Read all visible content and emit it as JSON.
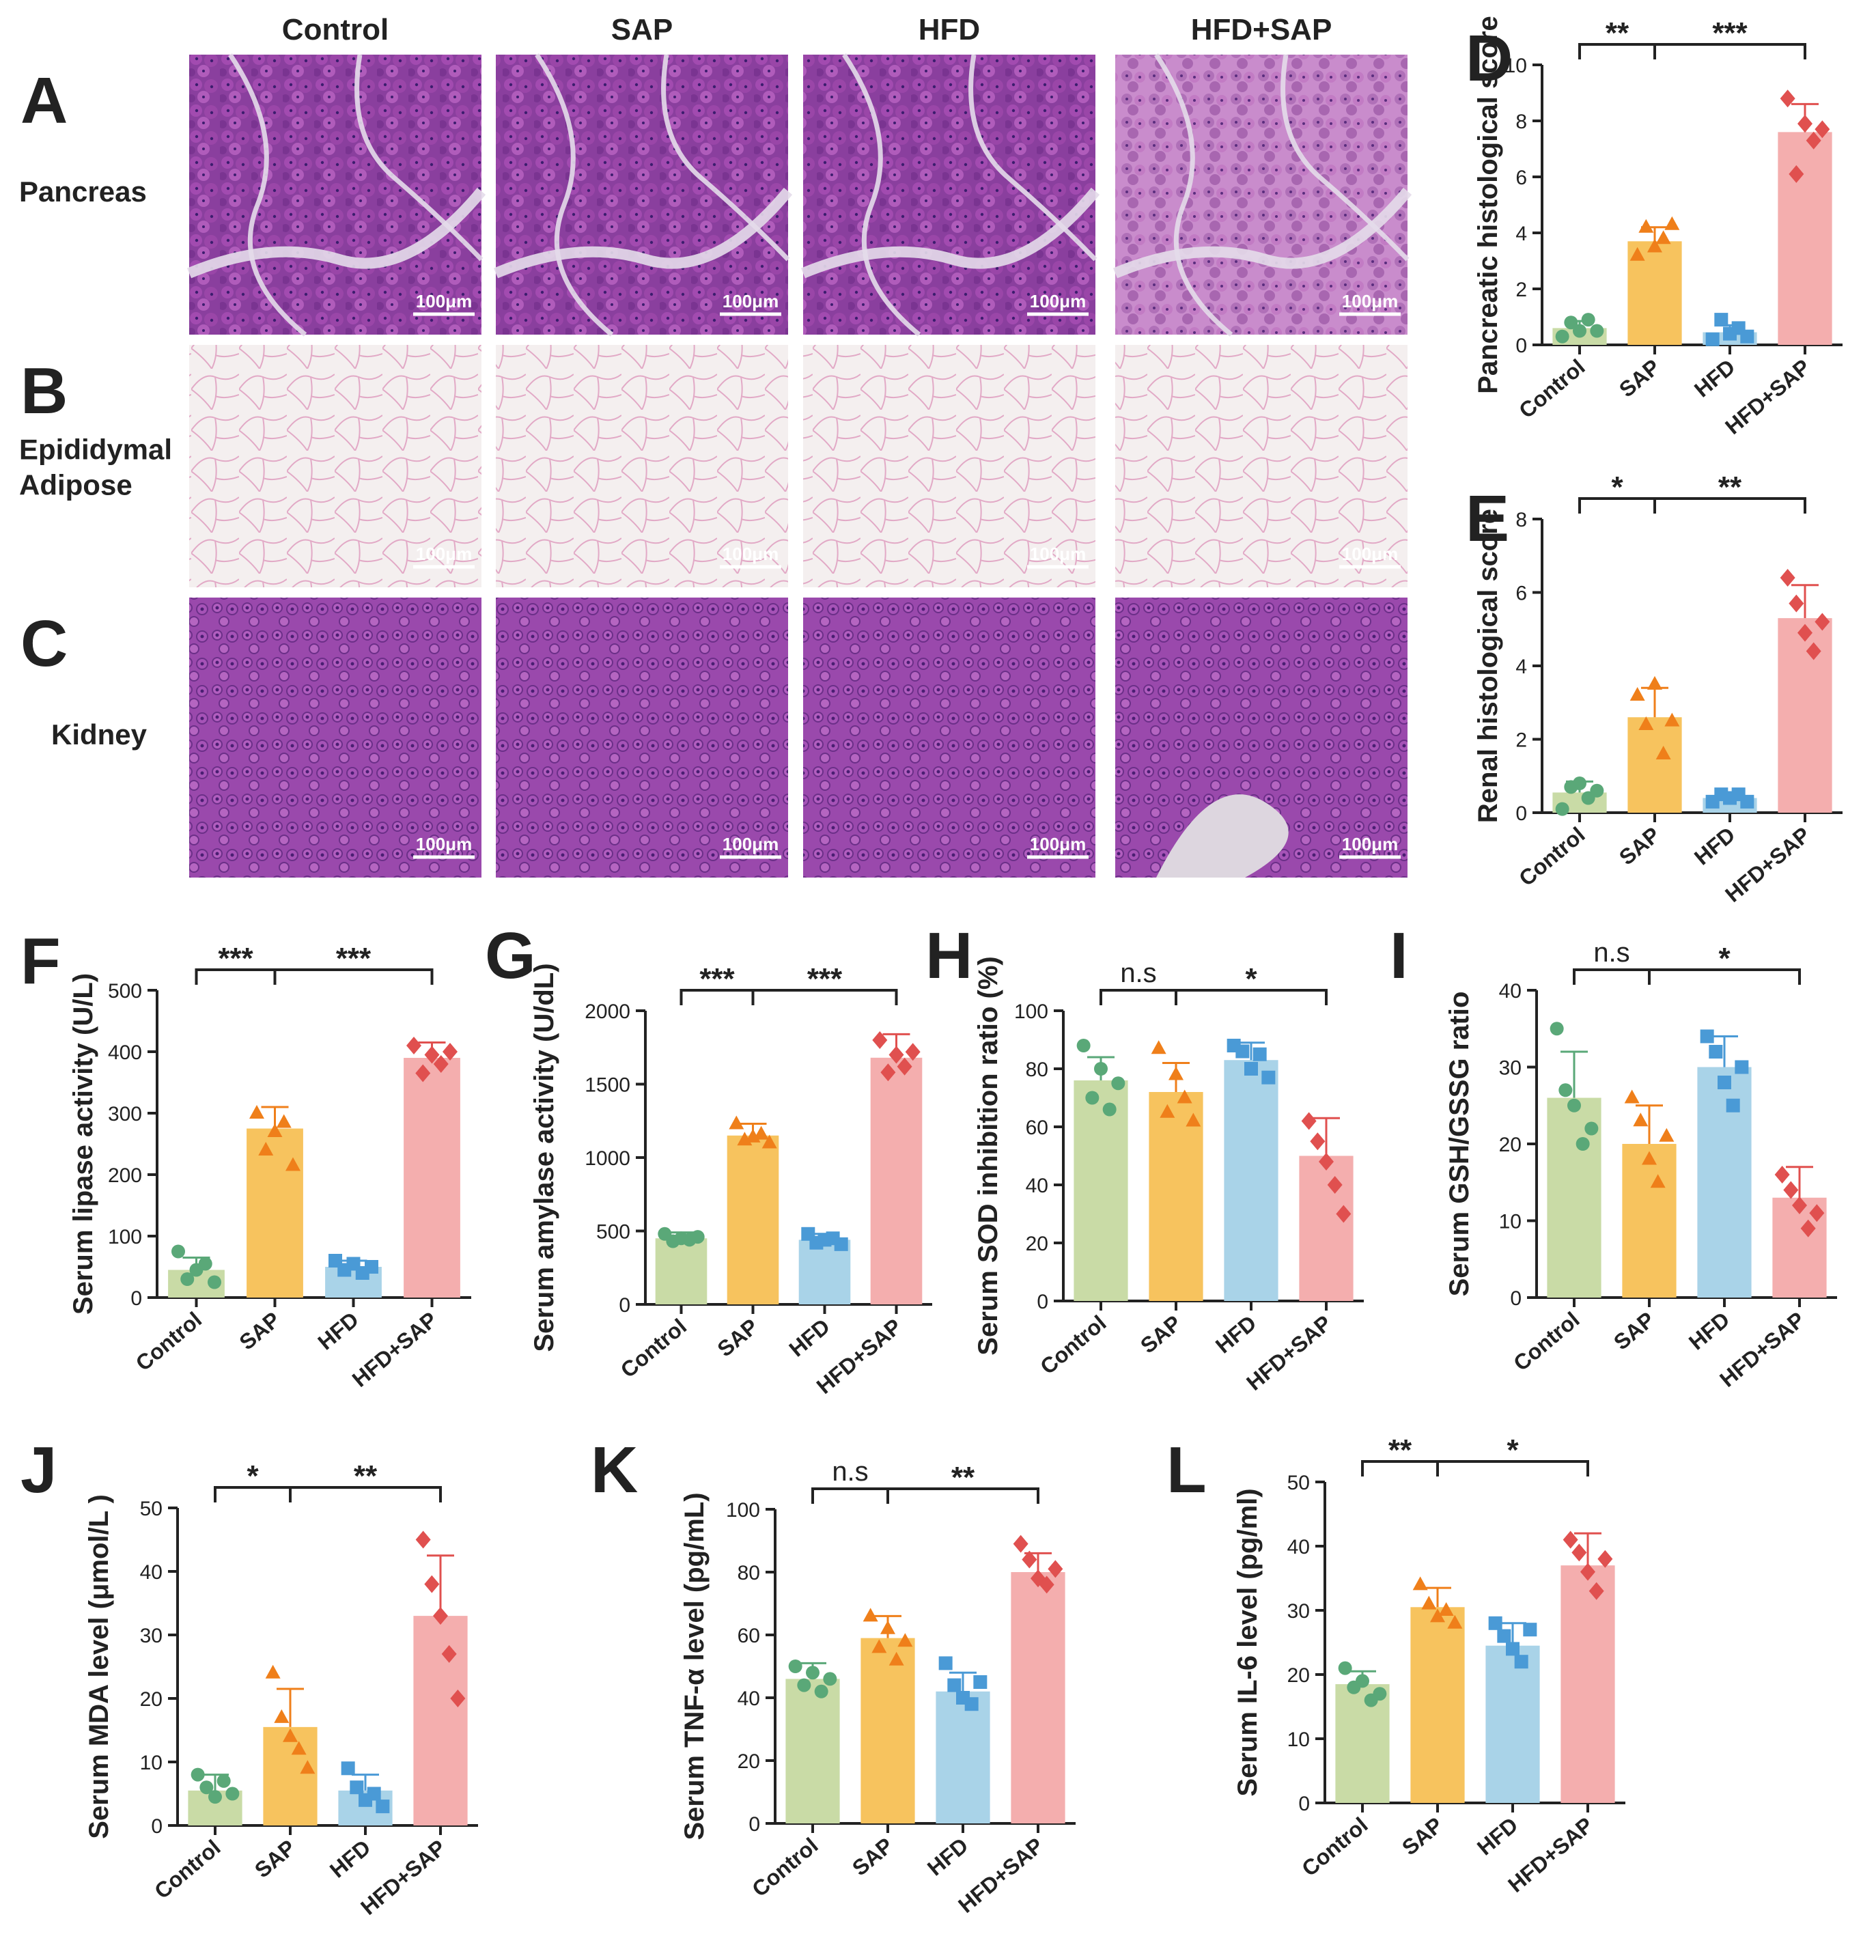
{
  "figure": {
    "columns": [
      "Control",
      "SAP",
      "HFD",
      "HFD+SAP"
    ],
    "rows": [
      {
        "letter": "A",
        "label_lines": [
          "Pancreas"
        ],
        "tissue": "pancreas"
      },
      {
        "letter": "B",
        "label_lines": [
          "Epididymal",
          "Adipose"
        ],
        "tissue": "adipose"
      },
      {
        "letter": "C",
        "label_lines": [
          "Kidney"
        ],
        "tissue": "kidney"
      }
    ],
    "scale_bar": "100μm"
  },
  "colors": {
    "Control": "#c9dba6",
    "SAP": "#f7c35e",
    "HFD": "#a9d3e8",
    "HFD+SAP": "#f4aeae",
    "point_Control": "#5aa878",
    "point_SAP": "#ef7f1a",
    "point_HFD": "#4a9ad6",
    "point_HFD+SAP": "#e0504f"
  },
  "chart_data": [
    {
      "panel": "D",
      "type": "bar",
      "ylabel": "Pancreatic histological score",
      "categories": [
        "Control",
        "SAP",
        "HFD",
        "HFD+SAP"
      ],
      "values": [
        0.6,
        3.7,
        0.45,
        7.6
      ],
      "errors": [
        0.25,
        0.5,
        0.25,
        1.0
      ],
      "points": [
        [
          0.3,
          0.8,
          0.5,
          0.9,
          0.5
        ],
        [
          3.2,
          4.2,
          3.5,
          3.8,
          4.3
        ],
        [
          0.2,
          0.9,
          0.4,
          0.6,
          0.3
        ],
        [
          8.8,
          6.1,
          7.9,
          7.3,
          7.7
        ]
      ],
      "ylim": [
        0,
        10
      ],
      "yticks": [
        0,
        2,
        4,
        6,
        8,
        10
      ],
      "significance": [
        {
          "from": 0,
          "to": 1,
          "label": "**"
        },
        {
          "from": 1,
          "to": 3,
          "label": "***"
        }
      ]
    },
    {
      "panel": "E",
      "type": "bar",
      "ylabel": "Renal histological score",
      "categories": [
        "Control",
        "SAP",
        "HFD",
        "HFD+SAP"
      ],
      "values": [
        0.55,
        2.6,
        0.4,
        5.3
      ],
      "errors": [
        0.3,
        0.8,
        0.1,
        0.9
      ],
      "points": [
        [
          0.1,
          0.7,
          0.8,
          0.4,
          0.6
        ],
        [
          3.2,
          2.4,
          3.5,
          1.6,
          2.5
        ],
        [
          0.3,
          0.5,
          0.4,
          0.5,
          0.3
        ],
        [
          6.4,
          5.7,
          4.9,
          4.4,
          5.2
        ]
      ],
      "ylim": [
        0,
        8
      ],
      "yticks": [
        0,
        2,
        4,
        6,
        8
      ],
      "significance": [
        {
          "from": 0,
          "to": 1,
          "label": "*"
        },
        {
          "from": 1,
          "to": 3,
          "label": "**"
        }
      ]
    },
    {
      "panel": "F",
      "type": "bar",
      "ylabel": "Serum lipase activity  (U/L)",
      "categories": [
        "Control",
        "SAP",
        "HFD",
        "HFD+SAP"
      ],
      "values": [
        45,
        275,
        50,
        390
      ],
      "errors": [
        20,
        35,
        10,
        25
      ],
      "points": [
        [
          75,
          30,
          45,
          55,
          25
        ],
        [
          300,
          240,
          270,
          285,
          215
        ],
        [
          60,
          45,
          55,
          40,
          50
        ],
        [
          410,
          365,
          395,
          380,
          400
        ]
      ],
      "ylim": [
        0,
        500
      ],
      "yticks": [
        0,
        100,
        200,
        300,
        400,
        500
      ],
      "significance": [
        {
          "from": 0,
          "to": 1,
          "label": "***"
        },
        {
          "from": 1,
          "to": 3,
          "label": "***"
        }
      ]
    },
    {
      "panel": "G",
      "type": "bar",
      "ylabel": "Serum amylase activity  (U/dL)",
      "categories": [
        "Control",
        "SAP",
        "HFD",
        "HFD+SAP"
      ],
      "values": [
        450,
        1150,
        440,
        1680
      ],
      "errors": [
        40,
        80,
        40,
        160
      ],
      "points": [
        [
          480,
          430,
          450,
          440,
          460
        ],
        [
          1230,
          1120,
          1140,
          1160,
          1100
        ],
        [
          480,
          420,
          440,
          450,
          410
        ],
        [
          1800,
          1580,
          1700,
          1620,
          1720
        ]
      ],
      "ylim": [
        0,
        2000
      ],
      "yticks": [
        0,
        500,
        1000,
        1500,
        2000
      ],
      "significance": [
        {
          "from": 0,
          "to": 1,
          "label": "***"
        },
        {
          "from": 1,
          "to": 3,
          "label": "***"
        }
      ]
    },
    {
      "panel": "H",
      "type": "bar",
      "ylabel": "Serum SOD inhibition ratio (%)",
      "categories": [
        "Control",
        "SAP",
        "HFD",
        "HFD+SAP"
      ],
      "values": [
        76,
        72,
        83,
        50
      ],
      "errors": [
        8,
        10,
        6,
        13
      ],
      "points": [
        [
          88,
          70,
          80,
          66,
          75
        ],
        [
          87,
          65,
          78,
          70,
          62
        ],
        [
          88,
          86,
          80,
          85,
          77
        ],
        [
          62,
          55,
          48,
          40,
          30
        ]
      ],
      "ylim": [
        0,
        100
      ],
      "yticks": [
        0,
        20,
        40,
        60,
        80,
        100
      ],
      "significance": [
        {
          "from": 0,
          "to": 1,
          "label": "n.s"
        },
        {
          "from": 1,
          "to": 3,
          "label": "*"
        }
      ]
    },
    {
      "panel": "I",
      "type": "bar",
      "ylabel": "Serum GSH/GSSG ratio",
      "categories": [
        "Control",
        "SAP",
        "HFD",
        "HFD+SAP"
      ],
      "values": [
        26,
        20,
        30,
        13
      ],
      "errors": [
        6,
        5,
        4,
        4
      ],
      "points": [
        [
          35,
          27,
          25,
          20,
          22
        ],
        [
          26,
          23,
          18,
          15,
          21
        ],
        [
          34,
          32,
          28,
          25,
          30
        ],
        [
          16,
          14,
          12,
          9,
          11
        ]
      ],
      "ylim": [
        0,
        40
      ],
      "yticks": [
        0,
        10,
        20,
        30,
        40
      ],
      "significance": [
        {
          "from": 0,
          "to": 1,
          "label": "n.s"
        },
        {
          "from": 1,
          "to": 3,
          "label": "*"
        }
      ]
    },
    {
      "panel": "J",
      "type": "bar",
      "ylabel": "Serum MDA level (μmol/L )",
      "categories": [
        "Control",
        "SAP",
        "HFD",
        "HFD+SAP"
      ],
      "values": [
        5.5,
        15.5,
        5.5,
        33
      ],
      "errors": [
        2.5,
        6,
        2.5,
        9.5
      ],
      "points": [
        [
          8,
          6,
          4.5,
          7,
          5
        ],
        [
          24,
          17,
          14,
          12,
          9
        ],
        [
          9,
          6,
          4,
          5,
          3
        ],
        [
          45,
          38,
          33,
          27,
          20
        ]
      ],
      "ylim": [
        0,
        50
      ],
      "yticks": [
        0,
        10,
        20,
        30,
        40,
        50
      ],
      "significance": [
        {
          "from": 0,
          "to": 1,
          "label": "*"
        },
        {
          "from": 1,
          "to": 3,
          "label": "**"
        }
      ]
    },
    {
      "panel": "K",
      "type": "bar",
      "ylabel": "Serum TNF-α level (pg/mL)",
      "categories": [
        "Control",
        "SAP",
        "HFD",
        "HFD+SAP"
      ],
      "values": [
        46,
        59,
        42,
        80
      ],
      "errors": [
        5,
        7,
        6,
        6
      ],
      "points": [
        [
          50,
          44,
          48,
          42,
          46
        ],
        [
          66,
          56,
          62,
          52,
          58
        ],
        [
          51,
          44,
          40,
          38,
          45
        ],
        [
          89,
          84,
          78,
          76,
          81
        ]
      ],
      "ylim": [
        0,
        100
      ],
      "yticks": [
        0,
        20,
        40,
        60,
        80,
        100
      ],
      "significance": [
        {
          "from": 0,
          "to": 1,
          "label": "n.s"
        },
        {
          "from": 1,
          "to": 3,
          "label": "**"
        }
      ]
    },
    {
      "panel": "L",
      "type": "bar",
      "ylabel": "Serum IL-6 level (pg/ml)",
      "categories": [
        "Control",
        "SAP",
        "HFD",
        "HFD+SAP"
      ],
      "values": [
        18.5,
        30.5,
        24.5,
        37
      ],
      "errors": [
        2,
        3,
        3.5,
        5
      ],
      "points": [
        [
          21,
          18,
          19,
          16,
          17
        ],
        [
          34,
          31,
          29,
          30,
          28
        ],
        [
          28,
          26,
          24,
          22,
          27
        ],
        [
          41,
          39,
          36,
          33,
          38
        ]
      ],
      "ylim": [
        0,
        50
      ],
      "yticks": [
        0,
        10,
        20,
        30,
        40,
        50
      ],
      "significance": [
        {
          "from": 0,
          "to": 1,
          "label": "**"
        },
        {
          "from": 1,
          "to": 3,
          "label": "*"
        }
      ]
    }
  ]
}
